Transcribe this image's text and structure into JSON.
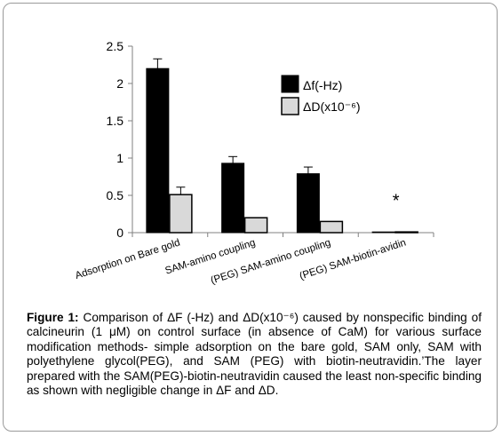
{
  "chart_data": {
    "type": "bar",
    "categories": [
      "Adsorption on Bare gold",
      "SAM-amino coupling",
      "(PEG) SAM-amino coupling",
      "(PEG) SAM-biotin-avidin"
    ],
    "series": [
      {
        "name": "Δf(-Hz)",
        "values": [
          2.2,
          0.93,
          0.79,
          0.0
        ],
        "errors": [
          0.13,
          0.09,
          0.09,
          0.0
        ],
        "color": "#000000"
      },
      {
        "name": "ΔD(x10⁻⁶)",
        "values": [
          0.51,
          0.2,
          0.15,
          0.01
        ],
        "errors": [
          0.1,
          0.0,
          0.0,
          0.0
        ],
        "color": "#d9d9d9"
      }
    ],
    "yticks": [
      "0",
      "0.5",
      "1",
      "1.5",
      "2",
      "2.5"
    ],
    "ylim": [
      0,
      2.5
    ],
    "annotation": "*",
    "annotation_category": 3,
    "legend_position": "top-right",
    "grid": false
  },
  "caption": {
    "label": "Figure 1:",
    "text": " Comparison of ΔF (-Hz) and ΔD(x10⁻⁶) caused by nonspecific binding of calcineurin (1 μM) on control surface (in absence of CaM) for various surface modification methods- simple adsorption on the bare gold, SAM only, SAM with polyethylene glycol(PEG), and SAM (PEG) with biotin-neutravidin.’The layer prepared with the SAM(PEG)-biotin-neutravidin caused the least non-specific binding as shown with negligible change in ΔF and ΔD."
  }
}
